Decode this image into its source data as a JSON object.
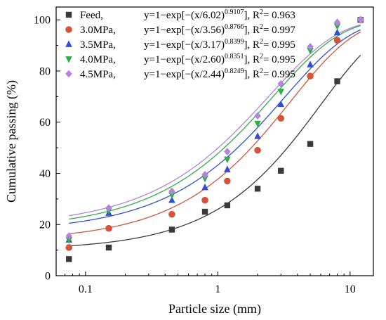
{
  "chart_data": {
    "type": "scatter",
    "title": "",
    "xlabel": "Particle size (mm)",
    "ylabel": "Cumulative passing (%)",
    "x_scale": "log",
    "xlim": [
      0.06,
      15
    ],
    "ylim": [
      0,
      105
    ],
    "x_ticks": [
      0.1,
      1,
      10
    ],
    "x_tick_labels": [
      "0.1",
      "1",
      "10"
    ],
    "y_ticks": [
      0,
      20,
      40,
      60,
      80,
      100
    ],
    "y_tick_labels": [
      "0",
      "20",
      "40",
      "60",
      "80",
      "100"
    ],
    "grid": false,
    "legend_position": "top-left",
    "x": [
      0.075,
      0.15,
      0.45,
      0.8,
      1.18,
      2,
      3,
      5,
      8,
      12
    ],
    "series": [
      {
        "name": "Feed,",
        "equation": {
          "prefix": "y=1−exp[−(x/6.02)",
          "exponent": "0.9107",
          "suffix": "], R",
          "r2_exp": "2",
          "r2": "= 0.963"
        },
        "color": "#3a3a3a",
        "marker": "square",
        "values": [
          6.5,
          11,
          18,
          25,
          27.5,
          34,
          41,
          51.5,
          76,
          100
        ],
        "fit": {
          "a": 6.02,
          "b": 0.9107,
          "y0": 10,
          "ymax": 100
        }
      },
      {
        "name": "3.0MPa,",
        "equation": {
          "prefix": "y=1−exp[−(x/3.56)",
          "exponent": "0.8766",
          "suffix": "], R",
          "r2_exp": "2",
          "r2": "= 0.997"
        },
        "color": "#d2553a",
        "marker": "circle",
        "values": [
          11,
          18.5,
          24,
          29.5,
          37,
          49,
          61.5,
          78,
          92,
          100
        ],
        "fit": {
          "a": 3.56,
          "b": 0.8766,
          "y0": 13.5,
          "ymax": 100
        }
      },
      {
        "name": "3.5MPa,",
        "equation": {
          "prefix": "y=1−exp[−(x/3.17)",
          "exponent": "0.8399",
          "suffix": "], R",
          "r2_exp": "2",
          "r2": "= 0.995"
        },
        "color": "#2e4fd6",
        "marker": "triangle-up",
        "values": [
          14,
          24.5,
          29.5,
          34.5,
          41.5,
          54.5,
          67,
          82.5,
          95,
          100
        ],
        "fit": {
          "a": 3.17,
          "b": 0.8399,
          "y0": 17,
          "ymax": 100
        }
      },
      {
        "name": "4.0MPa,",
        "equation": {
          "prefix": "y=1−exp[−(x/2.60)",
          "exponent": "0.8351",
          "suffix": "], R",
          "r2_exp": "2",
          "r2": "= 0.995"
        },
        "color": "#2fae48",
        "marker": "triangle-down",
        "values": [
          14,
          25.5,
          31.5,
          38,
          45.5,
          59.5,
          72,
          88,
          97.5,
          100
        ],
        "fit": {
          "a": 2.6,
          "b": 0.8351,
          "y0": 18,
          "ymax": 100
        }
      },
      {
        "name": "4.5MPa,",
        "equation": {
          "prefix": "y=1−exp[−(x/2.44)",
          "exponent": "0.8249",
          "suffix": "], R",
          "r2_exp": "2",
          "r2": "= 0.995"
        },
        "color": "#b583dd",
        "marker": "diamond",
        "values": [
          15.5,
          26.5,
          33,
          39.5,
          48.5,
          62.5,
          75,
          89.5,
          99,
          100
        ],
        "fit": {
          "a": 2.44,
          "b": 0.8249,
          "y0": 19,
          "ymax": 100
        }
      }
    ]
  }
}
